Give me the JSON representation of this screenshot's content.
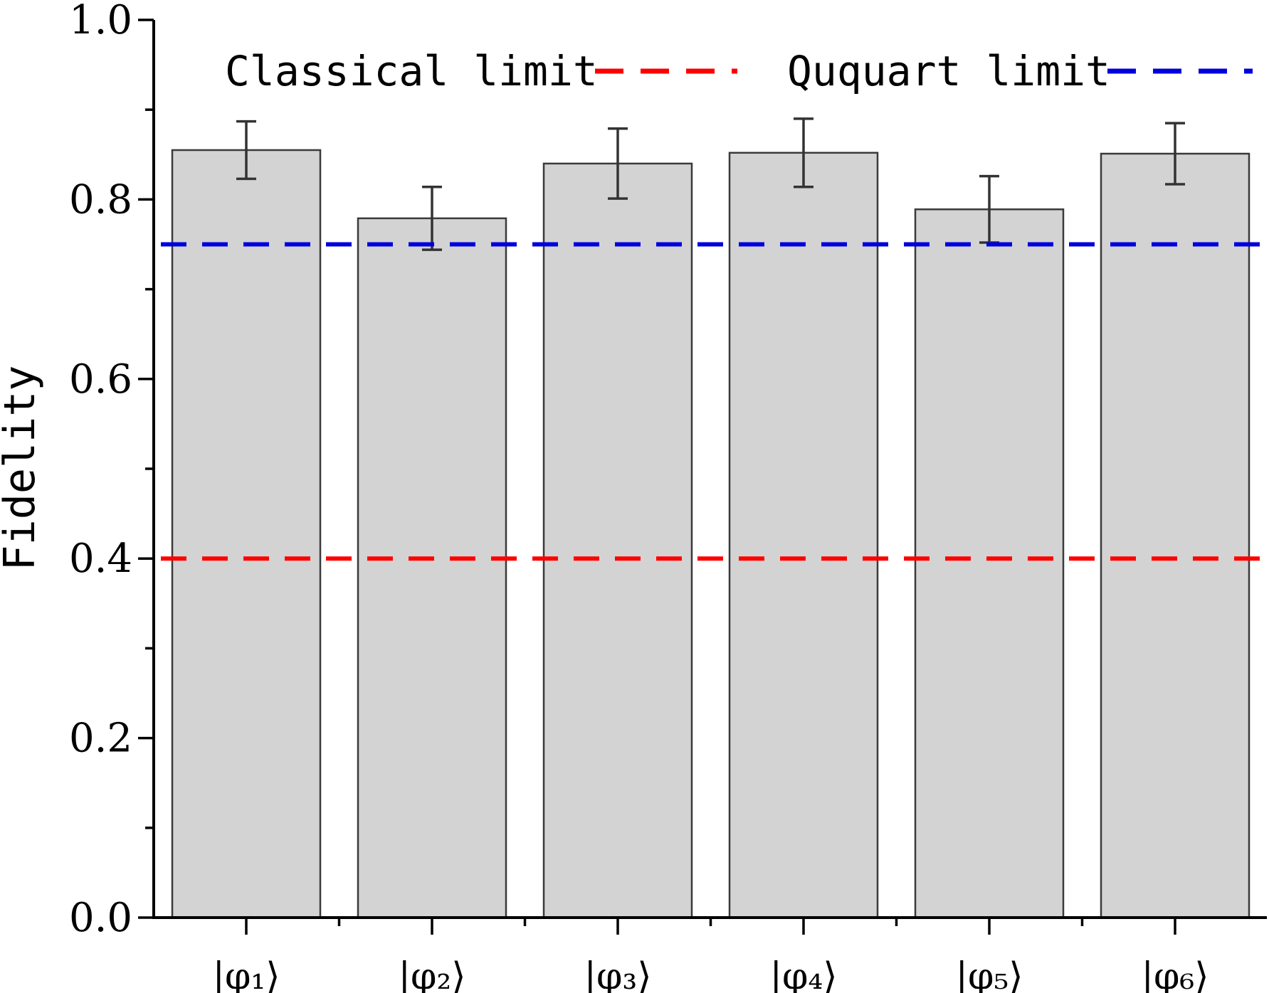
{
  "chart_data": {
    "type": "bar",
    "title": "",
    "xlabel": "",
    "ylabel": "Fidelity",
    "ylim": [
      0,
      1.0
    ],
    "yticks": [
      "0.0",
      "0.2",
      "0.4",
      "0.6",
      "0.8",
      "1.0"
    ],
    "categories": [
      "|φ₁⟩",
      "|φ₂⟩",
      "|φ₃⟩",
      "|φ₄⟩",
      "|φ₅⟩",
      "|φ₆⟩"
    ],
    "values": [
      0.855,
      0.779,
      0.84,
      0.852,
      0.789,
      0.851
    ],
    "errors": [
      0.032,
      0.035,
      0.039,
      0.038,
      0.037,
      0.034
    ],
    "bar_color": "#d3d3d3",
    "grid": false,
    "reference_lines": [
      {
        "name": "Classical limit",
        "value": 0.4,
        "color": "#ff0000",
        "style": "dashed"
      },
      {
        "name": "Ququart limit",
        "value": 0.75,
        "color": "#0000dd",
        "style": "dashed"
      }
    ],
    "legend_position": "top"
  }
}
